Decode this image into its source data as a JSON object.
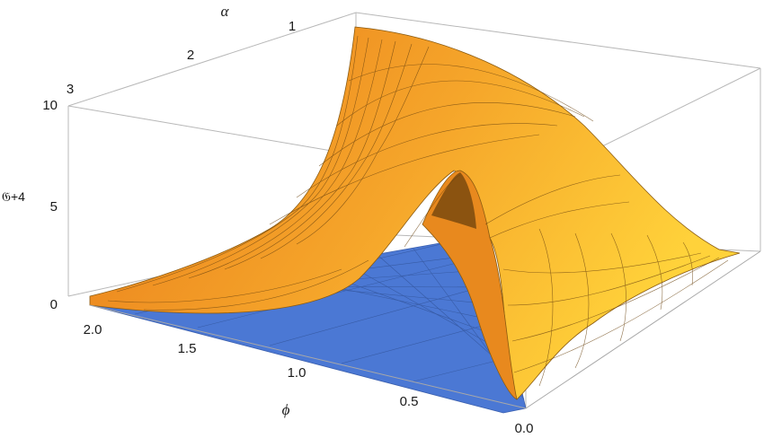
{
  "chart_data": {
    "type": "surface3d",
    "xlabel": "ϕ",
    "ylabel": "α",
    "zlabel": "𝔊+4",
    "xlim": [
      0,
      2
    ],
    "ylim": [
      1,
      3
    ],
    "zlim": [
      0,
      10
    ],
    "x_ticks": [
      "0.0",
      "0.5",
      "1.0",
      "1.5",
      "2.0"
    ],
    "y_ticks": [
      "1",
      "2",
      "3"
    ],
    "z_ticks": [
      "0",
      "5",
      "10"
    ],
    "grid": false,
    "box": true,
    "series": [
      {
        "name": "",
        "color": "#F29A1F",
        "x": [
          0.0,
          0.1,
          0.3,
          0.6,
          1.0,
          1.5,
          2.0
        ],
        "y_at_1": [
          0.3,
          9.0,
          10.5,
          10.2,
          9.0,
          7.2,
          5.6
        ],
        "y_at_2": [
          0.3,
          0.6,
          3.5,
          5.8,
          5.0,
          3.7,
          2.8
        ],
        "y_at_3": [
          0.3,
          0.2,
          0.4,
          4.3,
          3.0,
          1.8,
          0.6
        ]
      },
      {
        "name": "",
        "color": "#4B78D4",
        "plane_z": 0
      }
    ]
  }
}
